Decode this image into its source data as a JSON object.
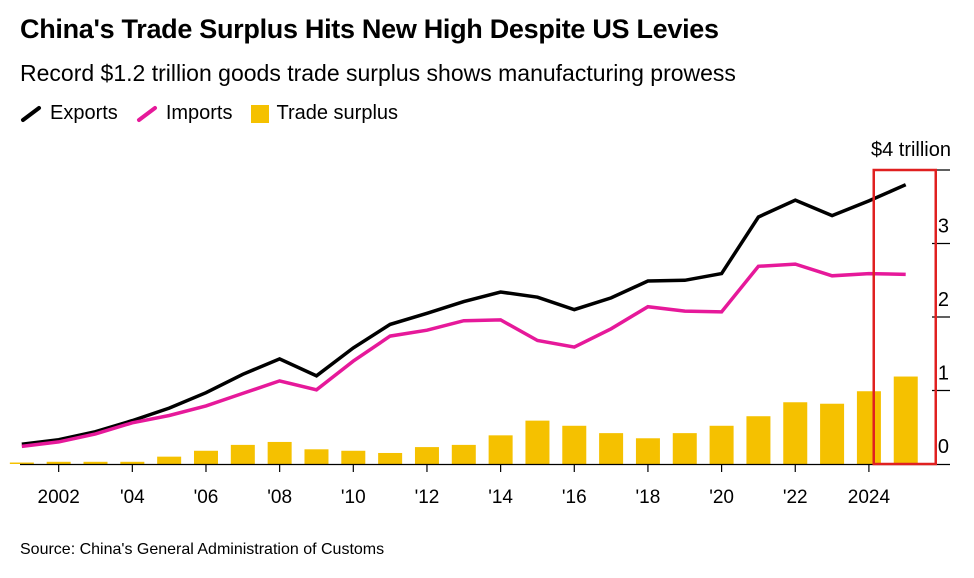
{
  "header": {
    "title": "China's Trade Surplus Hits New High Despite US Levies",
    "subtitle": "Record $1.2 trillion goods trade surplus shows manufacturing prowess"
  },
  "legend": {
    "items": [
      {
        "label": "Exports",
        "color": "#000000",
        "kind": "line"
      },
      {
        "label": "Imports",
        "color": "#e6199a",
        "kind": "line"
      },
      {
        "label": "Trade surplus",
        "color": "#f5c100",
        "kind": "bar"
      }
    ]
  },
  "colors": {
    "exports": "#000000",
    "imports": "#e6199a",
    "surplus": "#f5c100",
    "highlight": "#e02020",
    "axis": "#000000"
  },
  "source": "Source: China's General Administration of Customs",
  "chart_data": {
    "type": "bar",
    "title": "China's Trade Surplus Hits New High Despite US Levies",
    "x": [
      2001,
      2002,
      2003,
      2004,
      2005,
      2006,
      2007,
      2008,
      2009,
      2010,
      2011,
      2012,
      2013,
      2014,
      2015,
      2016,
      2017,
      2018,
      2019,
      2020,
      2021,
      2022,
      2023,
      2024,
      2025
    ],
    "x_tick_values": [
      2002,
      2004,
      2006,
      2008,
      2010,
      2012,
      2014,
      2016,
      2018,
      2020,
      2022,
      2024
    ],
    "x_tick_labels": [
      "2002",
      "'04",
      "'06",
      "'08",
      "'10",
      "'12",
      "'14",
      "'16",
      "'18",
      "'20",
      "'22",
      "2024"
    ],
    "y_ticks": [
      0,
      1,
      2,
      3,
      4
    ],
    "y_tick_labels": [
      "0",
      "1",
      "2",
      "3",
      "$4 trillion"
    ],
    "ylim": [
      0,
      4
    ],
    "xlim": [
      2000.95,
      2025.55
    ],
    "grid": false,
    "legend_position": "top-left",
    "series": [
      {
        "name": "Exports",
        "type": "line",
        "values": [
          0.27,
          0.33,
          0.44,
          0.59,
          0.76,
          0.97,
          1.22,
          1.43,
          1.2,
          1.58,
          1.9,
          2.05,
          2.21,
          2.34,
          2.27,
          2.1,
          2.26,
          2.49,
          2.5,
          2.59,
          3.36,
          3.59,
          3.38,
          3.58,
          3.8
        ]
      },
      {
        "name": "Imports",
        "type": "line",
        "values": [
          0.24,
          0.3,
          0.41,
          0.56,
          0.66,
          0.79,
          0.96,
          1.13,
          1.01,
          1.4,
          1.74,
          1.82,
          1.95,
          1.96,
          1.68,
          1.59,
          1.84,
          2.14,
          2.08,
          2.07,
          2.69,
          2.72,
          2.56,
          2.59,
          2.58
        ]
      },
      {
        "name": "Trade surplus",
        "type": "bar",
        "values": [
          0.02,
          0.03,
          0.03,
          0.03,
          0.1,
          0.18,
          0.26,
          0.3,
          0.2,
          0.18,
          0.15,
          0.23,
          0.26,
          0.39,
          0.59,
          0.52,
          0.42,
          0.35,
          0.42,
          0.52,
          0.65,
          0.84,
          0.82,
          0.99,
          1.19
        ]
      }
    ],
    "highlight_year": 2025
  }
}
